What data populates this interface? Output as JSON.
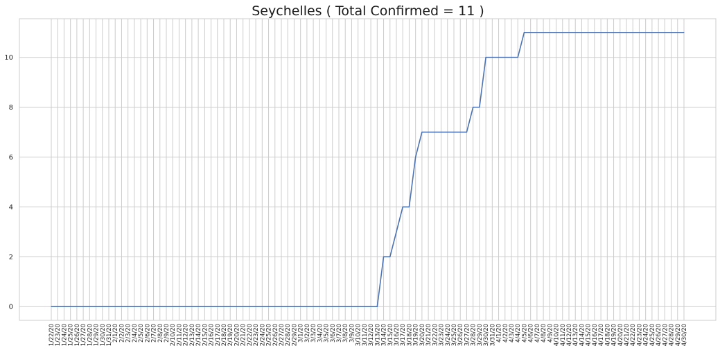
{
  "chart_data": {
    "type": "line",
    "title": "Seychelles ( Total Confirmed = 11 )",
    "xlabel": "",
    "ylabel": "",
    "ylim": [
      -0.55,
      11.55
    ],
    "yticks": [
      0,
      2,
      4,
      6,
      8,
      10
    ],
    "grid": true,
    "line_color": "#4c72b0",
    "x": [
      "1/22/20",
      "1/23/20",
      "1/24/20",
      "1/25/20",
      "1/26/20",
      "1/27/20",
      "1/28/20",
      "1/29/20",
      "1/30/20",
      "1/31/20",
      "2/1/20",
      "2/2/20",
      "2/3/20",
      "2/4/20",
      "2/5/20",
      "2/6/20",
      "2/7/20",
      "2/8/20",
      "2/9/20",
      "2/10/20",
      "2/11/20",
      "2/12/20",
      "2/13/20",
      "2/14/20",
      "2/15/20",
      "2/16/20",
      "2/17/20",
      "2/18/20",
      "2/19/20",
      "2/20/20",
      "2/21/20",
      "2/22/20",
      "2/23/20",
      "2/24/20",
      "2/25/20",
      "2/26/20",
      "2/27/20",
      "2/28/20",
      "2/29/20",
      "3/1/20",
      "3/2/20",
      "3/3/20",
      "3/4/20",
      "3/5/20",
      "3/6/20",
      "3/7/20",
      "3/8/20",
      "3/9/20",
      "3/10/20",
      "3/11/20",
      "3/12/20",
      "3/13/20",
      "3/14/20",
      "3/15/20",
      "3/16/20",
      "3/17/20",
      "3/18/20",
      "3/19/20",
      "3/20/20",
      "3/21/20",
      "3/22/20",
      "3/23/20",
      "3/24/20",
      "3/25/20",
      "3/26/20",
      "3/27/20",
      "3/28/20",
      "3/29/20",
      "3/30/20",
      "3/31/20",
      "4/1/20",
      "4/2/20",
      "4/3/20",
      "4/4/20",
      "4/5/20",
      "4/6/20",
      "4/7/20",
      "4/8/20",
      "4/9/20",
      "4/10/20",
      "4/11/20",
      "4/12/20",
      "4/13/20",
      "4/14/20",
      "4/15/20",
      "4/16/20",
      "4/17/20",
      "4/18/20",
      "4/19/20",
      "4/20/20",
      "4/21/20",
      "4/22/20",
      "4/23/20",
      "4/24/20",
      "4/25/20",
      "4/26/20",
      "4/27/20",
      "4/28/20",
      "4/29/20",
      "4/30/20"
    ],
    "series": [
      {
        "values": [
          0,
          0,
          0,
          0,
          0,
          0,
          0,
          0,
          0,
          0,
          0,
          0,
          0,
          0,
          0,
          0,
          0,
          0,
          0,
          0,
          0,
          0,
          0,
          0,
          0,
          0,
          0,
          0,
          0,
          0,
          0,
          0,
          0,
          0,
          0,
          0,
          0,
          0,
          0,
          0,
          0,
          0,
          0,
          0,
          0,
          0,
          0,
          0,
          0,
          0,
          0,
          0,
          2,
          2,
          3,
          4,
          4,
          6,
          7,
          7,
          7,
          7,
          7,
          7,
          7,
          7,
          8,
          8,
          10,
          10,
          10,
          10,
          10,
          10,
          11,
          11,
          11,
          11,
          11,
          11,
          11,
          11,
          11,
          11,
          11,
          11,
          11,
          11,
          11,
          11,
          11,
          11,
          11,
          11,
          11,
          11,
          11,
          11,
          11,
          11
        ]
      }
    ]
  }
}
